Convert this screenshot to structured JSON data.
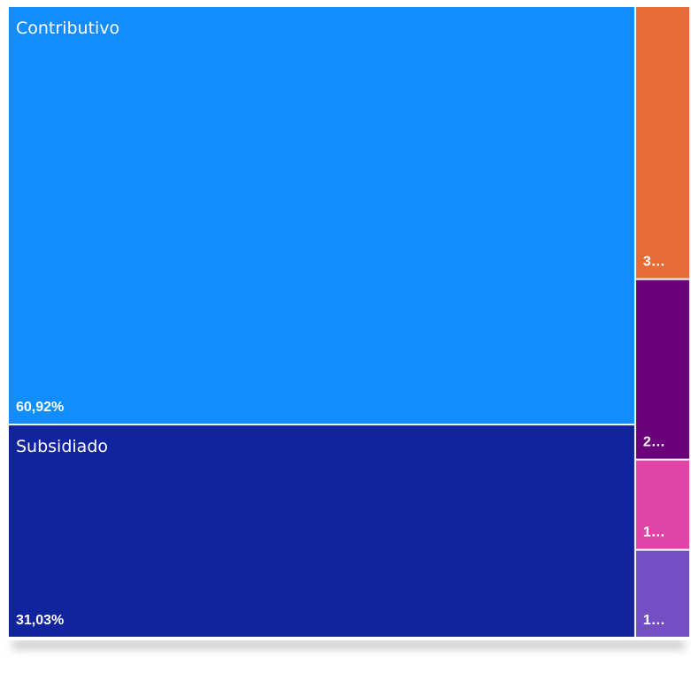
{
  "chart_data": {
    "type": "treemap",
    "categories": [
      "Contributivo",
      "Subsidiado",
      null,
      null,
      null,
      null
    ],
    "values": [
      60.92,
      31.03,
      3.48,
      2.3,
      1.15,
      1.12
    ],
    "value_labels": [
      "60,92%",
      "31,03%",
      "3…",
      "2…",
      "1…",
      "1…"
    ],
    "colors": [
      "#118dff",
      "#12239e",
      "#e66c37",
      "#6b007b",
      "#e044a7",
      "#744ec2"
    ]
  }
}
